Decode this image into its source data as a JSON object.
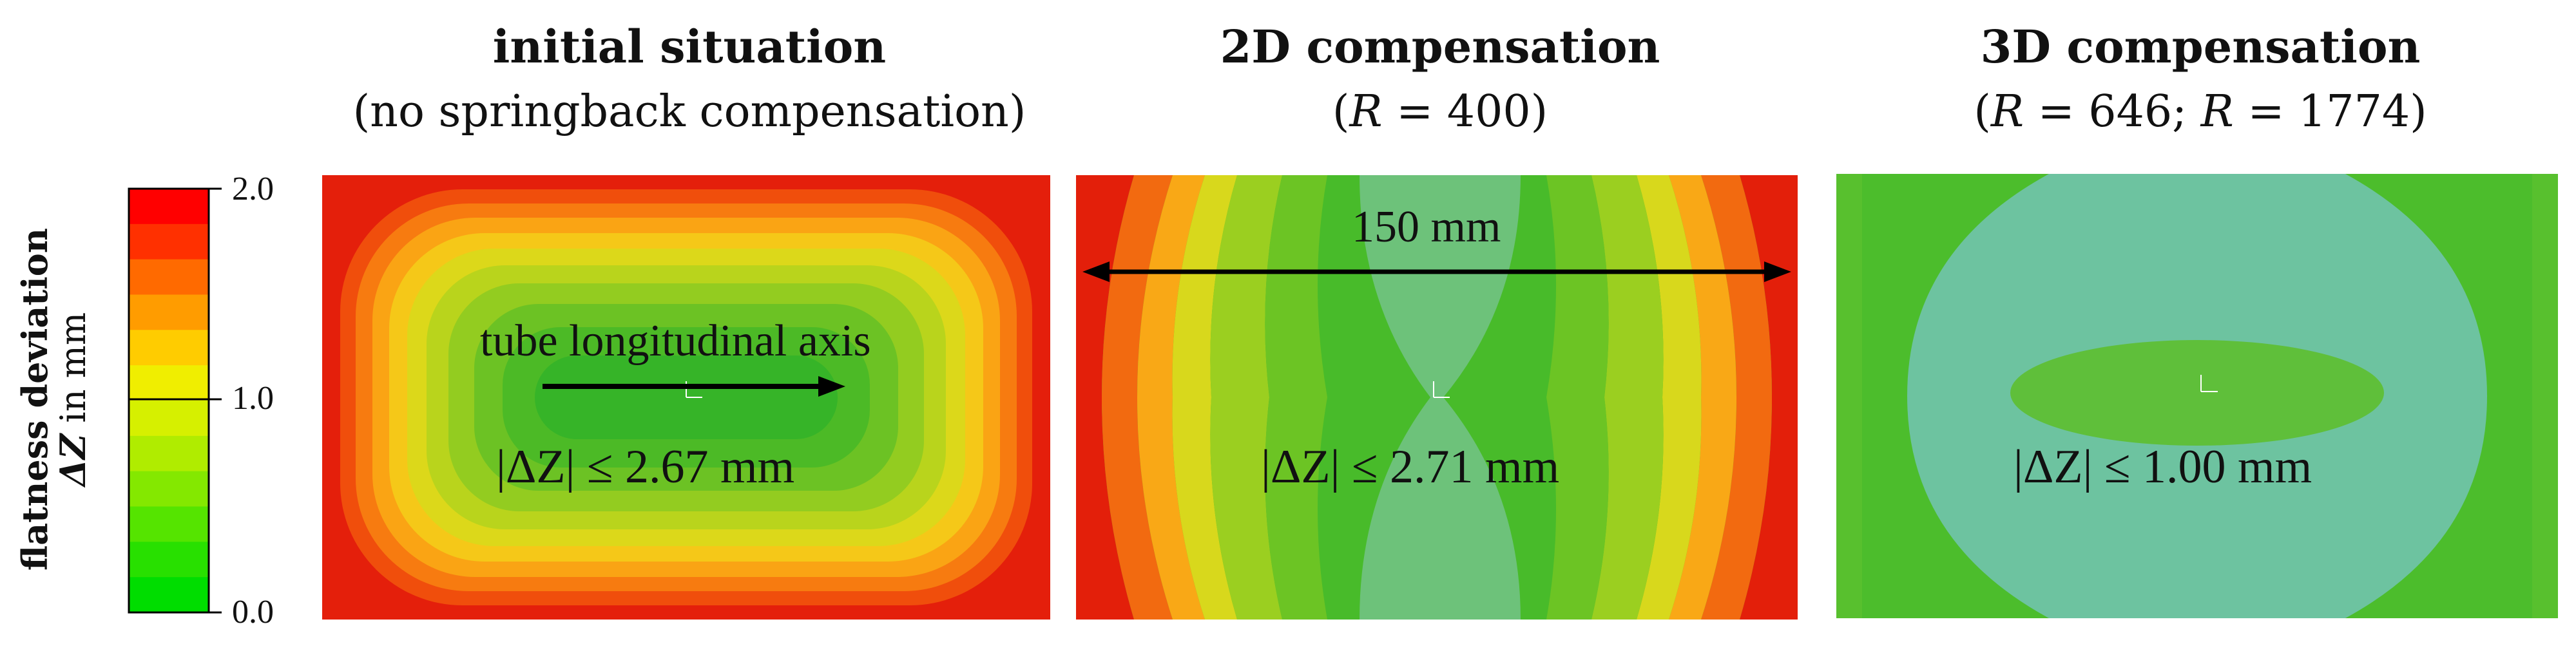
{
  "colorbar": {
    "label_line1": "flatness deviation",
    "label_symbol": "ΔZ",
    "label_unit": "in mm",
    "ticks": [
      "2.0",
      "1.0",
      "0.0"
    ],
    "min": 0.0,
    "max": 2.0,
    "colors": [
      "#ff0000",
      "#ff3000",
      "#ff6a00",
      "#ff9c00",
      "#ffcc00",
      "#f0ee00",
      "#d6f000",
      "#b0ec00",
      "#84e800",
      "#55e400",
      "#28e000",
      "#00dd00"
    ]
  },
  "panels": [
    {
      "title": "initial situation",
      "subtitle": "(no springback compensation)",
      "annotation_arrow": "tube longitudinal  axis",
      "max_deviation": "|ΔZ| ≤ 2.67 mm"
    },
    {
      "title": "2D compensation",
      "subtitle_pre": "(",
      "subtitle_var": "R",
      "subtitle_post": " = 400)",
      "dimension_label": "150 mm",
      "max_deviation": "|ΔZ| ≤ 2.71 mm"
    },
    {
      "title": "3D compensation",
      "subtitle_pre": "(",
      "subtitle_var1": "R",
      "subtitle_mid": " = 646; ",
      "subtitle_var2": "R",
      "subtitle_post": " = 1774)",
      "max_deviation": "|ΔZ| ≤ 1.00 mm"
    }
  ]
}
